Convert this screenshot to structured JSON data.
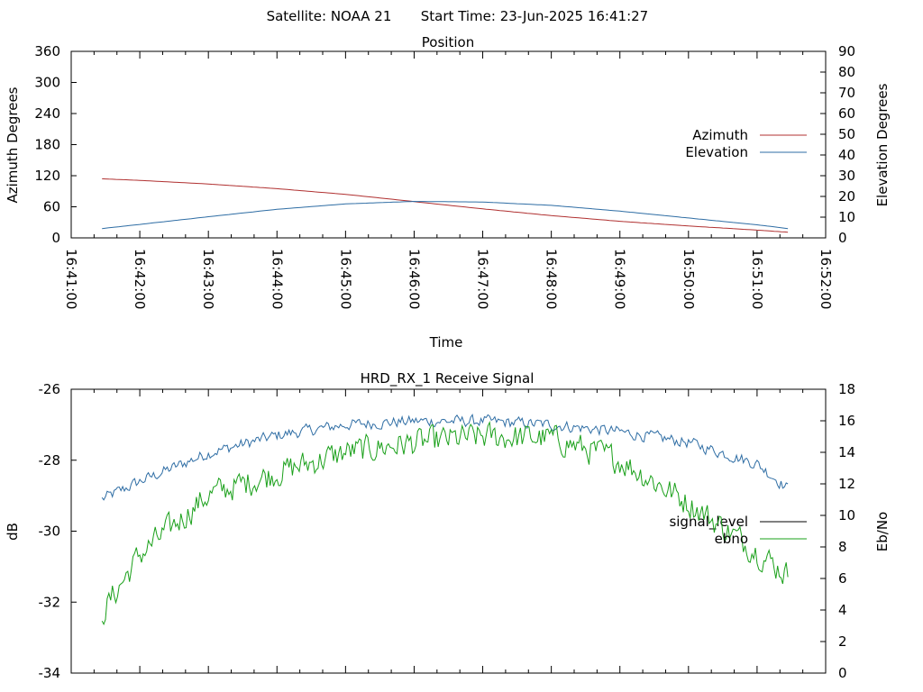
{
  "header": {
    "satellite_label": "Satellite: NOAA 21",
    "start_time_label": "Start Time: 23-Jun-2025 16:41:27"
  },
  "chart_data": [
    {
      "type": "line",
      "title": "Position",
      "xlabel": "Time",
      "ylabel": "Azimuth Degrees",
      "y2label": "Elevation Degrees",
      "xlim": [
        "16:41:00",
        "16:52:00"
      ],
      "x_tick_labels": [
        "16:41:00",
        "16:42:00",
        "16:43:00",
        "16:44:00",
        "16:45:00",
        "16:46:00",
        "16:47:00",
        "16:48:00",
        "16:49:00",
        "16:50:00",
        "16:51:00",
        "16:52:00"
      ],
      "ylim": [
        0,
        360
      ],
      "y_ticks": [
        0,
        60,
        120,
        180,
        240,
        300,
        360
      ],
      "y2lim": [
        0,
        90
      ],
      "y2_ticks": [
        0,
        10,
        20,
        30,
        40,
        50,
        60,
        70,
        80,
        90
      ],
      "legend_position": "right",
      "x": [
        "16:41:27",
        "16:42:00",
        "16:43:00",
        "16:44:00",
        "16:45:00",
        "16:46:00",
        "16:47:00",
        "16:48:00",
        "16:49:00",
        "16:50:00",
        "16:51:00",
        "16:51:27"
      ],
      "series": [
        {
          "name": "Azimuth",
          "axis": "left",
          "color": "#b03030",
          "values": [
            114,
            111,
            104,
            95,
            84,
            70,
            56,
            43,
            32,
            23,
            15,
            11
          ]
        },
        {
          "name": "Elevation",
          "axis": "right",
          "color": "#2e6da4",
          "values": [
            4.5,
            6.5,
            10.2,
            13.8,
            16.4,
            17.6,
            17.3,
            15.7,
            12.9,
            9.6,
            6.3,
            4.5
          ]
        }
      ]
    },
    {
      "type": "line",
      "title": "HRD_RX_1 Receive Signal",
      "ylabel": "dB",
      "y2label": "Eb/No",
      "xlim": [
        "16:41:00",
        "16:52:00"
      ],
      "ylim": [
        -34,
        -26
      ],
      "y_ticks": [
        -34,
        -32,
        -30,
        -28,
        -26
      ],
      "y2lim": [
        0,
        18
      ],
      "y2_ticks": [
        0,
        2,
        4,
        6,
        8,
        10,
        12,
        14,
        16,
        18
      ],
      "legend_position": "right",
      "x": [
        "16:41:27",
        "16:42:00",
        "16:43:00",
        "16:44:00",
        "16:45:00",
        "16:46:00",
        "16:47:00",
        "16:48:00",
        "16:49:00",
        "16:50:00",
        "16:51:00",
        "16:51:27"
      ],
      "series": [
        {
          "name": "signal_level",
          "axis": "left",
          "color": "#2e6da4",
          "noise": 0.15,
          "values": [
            -29.1,
            -28.6,
            -27.8,
            -27.3,
            -27.0,
            -26.9,
            -26.9,
            -27.0,
            -27.2,
            -27.5,
            -28.1,
            -28.8
          ]
        },
        {
          "name": "ebno",
          "axis": "right",
          "color": "#1aa01a",
          "noise": 0.8,
          "values": [
            3.8,
            7.5,
            11.3,
            12.7,
            14.0,
            14.6,
            15.0,
            14.9,
            13.5,
            10.8,
            7.7,
            6.2
          ]
        }
      ]
    }
  ]
}
